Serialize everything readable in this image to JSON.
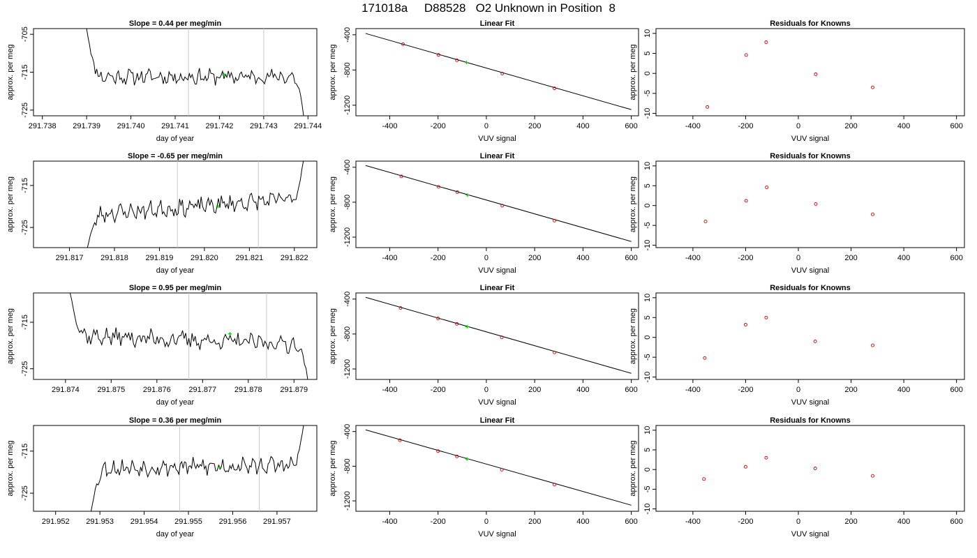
{
  "figure": {
    "title": "171018a     D88528   O2 Unknown in Position  8"
  },
  "colors": {
    "trace": "#000000",
    "guide": "#c8c8c8",
    "unknown": "#00cc00",
    "known": "#cc0000",
    "fitline": "#000000"
  },
  "chart_data": [
    {
      "type": "line",
      "panel": "timeseries",
      "row": 0,
      "title": "Slope =  0.44  per meg/min",
      "xlabel": "day of year",
      "ylabel": "approx. per meg",
      "xlim": [
        291.7378,
        291.7442
      ],
      "ylim": [
        -726.5,
        -703.5
      ],
      "y_reversed": true,
      "xticks": [
        291.738,
        291.739,
        291.74,
        291.741,
        291.742,
        291.743,
        291.744
      ],
      "xtick_labels": [
        "291.738",
        "291.739",
        "291.740",
        "291.741",
        "291.742",
        "291.743",
        "291.744"
      ],
      "yticks": [
        -705,
        -715,
        -725
      ],
      "ytick_labels": [
        "-705",
        "-715",
        "-725"
      ],
      "vlines": [
        291.7413,
        291.743
      ],
      "trace": {
        "x_start": 291.739,
        "x_end": 291.7439,
        "start_y": -703.5,
        "end_y": -726.5,
        "mean": -716.2,
        "amplitude": 1.6,
        "seed": 11
      },
      "unknown_point": {
        "x": 291.7421,
        "y": -715.6
      }
    },
    {
      "type": "scatter",
      "panel": "linear-fit",
      "row": 0,
      "title": "Linear Fit",
      "xlabel": "VUV signal",
      "ylabel": "approx. per meg",
      "xlim": [
        -540,
        630
      ],
      "ylim": [
        -1320,
        -330
      ],
      "y_reversed": true,
      "xticks": [
        -400,
        -200,
        0,
        200,
        400,
        600
      ],
      "xtick_labels": [
        "-400",
        "-200",
        "0",
        "200",
        "400",
        "600"
      ],
      "yticks": [
        -400,
        -800,
        -1200
      ],
      "ytick_labels": [
        "-400",
        "-800",
        "-1200"
      ],
      "fit_line": {
        "x": [
          -500,
          600
        ],
        "y": [
          -385,
          -1250
        ]
      },
      "knowns": [
        {
          "x": -345,
          "y": -506
        },
        {
          "x": -198,
          "y": -629
        },
        {
          "x": -122,
          "y": -690
        },
        {
          "x": 66,
          "y": -841
        },
        {
          "x": 282,
          "y": -1008
        }
      ],
      "unknown": {
        "x": -82,
        "y": -715
      }
    },
    {
      "type": "scatter",
      "panel": "residuals",
      "row": 0,
      "title": "Residuals for Knowns",
      "xlabel": "VUV signal",
      "ylabel": "approx. per meg",
      "xlim": [
        -540,
        630
      ],
      "ylim": [
        -10.6,
        11.2
      ],
      "xticks": [
        -400,
        -200,
        0,
        200,
        400,
        600
      ],
      "xtick_labels": [
        "-400",
        "-200",
        "0",
        "200",
        "400",
        "600"
      ],
      "yticks": [
        10,
        5,
        0,
        -5,
        -10
      ],
      "ytick_labels": [
        "10",
        "5",
        "0",
        "-5",
        "-10"
      ],
      "points": [
        {
          "x": -345,
          "y": -8.4
        },
        {
          "x": -198,
          "y": 4.6
        },
        {
          "x": -122,
          "y": 7.8
        },
        {
          "x": 66,
          "y": -0.2
        },
        {
          "x": 282,
          "y": -3.5
        }
      ]
    },
    {
      "type": "line",
      "panel": "timeseries",
      "row": 1,
      "title": "Slope =  -0.65  per meg/min",
      "xlabel": "day of year",
      "ylabel": "approx. per meg",
      "xlim": [
        291.8162,
        291.8225
      ],
      "ylim": [
        -729.8,
        -709.2
      ],
      "y_reversed": true,
      "xticks": [
        291.817,
        291.818,
        291.819,
        291.82,
        291.821,
        291.822
      ],
      "xtick_labels": [
        "291.817",
        "291.818",
        "291.819",
        "291.820",
        "291.821",
        "291.822"
      ],
      "yticks": [
        -715,
        -725
      ],
      "ytick_labels": [
        "-715",
        "-725"
      ],
      "vlines": [
        291.8194,
        291.8212
      ],
      "trace": {
        "x_start": 291.8174,
        "x_end": 291.8222,
        "start_y": -729.8,
        "end_y": -709.2,
        "mean": -720.0,
        "amplitude": 1.6,
        "trend": 4.0,
        "seed": 23
      },
      "unknown_point": {
        "x": 291.8203,
        "y": -720.0
      }
    },
    {
      "type": "scatter",
      "panel": "linear-fit",
      "row": 1,
      "title": "Linear Fit",
      "xlabel": "VUV signal",
      "ylabel": "approx. per meg",
      "xlim": [
        -540,
        630
      ],
      "ylim": [
        -1320,
        -330
      ],
      "y_reversed": true,
      "xticks": [
        -400,
        -200,
        0,
        200,
        400,
        600
      ],
      "xtick_labels": [
        "-400",
        "-200",
        "0",
        "200",
        "400",
        "600"
      ],
      "yticks": [
        -400,
        -800,
        -1200
      ],
      "ytick_labels": [
        "-400",
        "-800",
        "-1200"
      ],
      "fit_line": {
        "x": [
          -500,
          600
        ],
        "y": [
          -380,
          -1250
        ]
      },
      "knowns": [
        {
          "x": -352,
          "y": -505
        },
        {
          "x": -198,
          "y": -625
        },
        {
          "x": -120,
          "y": -685
        },
        {
          "x": 66,
          "y": -840
        },
        {
          "x": 282,
          "y": -1011
        }
      ],
      "unknown": {
        "x": -78,
        "y": -719
      }
    },
    {
      "type": "scatter",
      "panel": "residuals",
      "row": 1,
      "title": "Residuals for Knowns",
      "xlabel": "VUV signal",
      "ylabel": "approx. per meg",
      "xlim": [
        -540,
        630
      ],
      "ylim": [
        -10.6,
        11.2
      ],
      "xticks": [
        -400,
        -200,
        0,
        200,
        400,
        600
      ],
      "xtick_labels": [
        "-400",
        "-200",
        "0",
        "200",
        "400",
        "600"
      ],
      "yticks": [
        10,
        5,
        0,
        -5,
        -10
      ],
      "ytick_labels": [
        "10",
        "5",
        "0",
        "-5",
        "-10"
      ],
      "points": [
        {
          "x": -352,
          "y": -4.0
        },
        {
          "x": -198,
          "y": 1.2
        },
        {
          "x": -120,
          "y": 4.6
        },
        {
          "x": 66,
          "y": 0.4
        },
        {
          "x": 282,
          "y": -2.2
        }
      ]
    },
    {
      "type": "line",
      "panel": "timeseries",
      "row": 2,
      "title": "Slope =  0.95  per meg/min",
      "xlabel": "day of year",
      "ylabel": "approx. per meg",
      "xlim": [
        291.8733,
        291.8795
      ],
      "ylim": [
        -727.3,
        -708.7
      ],
      "y_reversed": true,
      "xticks": [
        291.874,
        291.875,
        291.876,
        291.877,
        291.878,
        291.879
      ],
      "xtick_labels": [
        "291.874",
        "291.875",
        "291.876",
        "291.877",
        "291.878",
        "291.879"
      ],
      "yticks": [
        -715,
        -725
      ],
      "ytick_labels": [
        "-715",
        "-725"
      ],
      "vlines": [
        291.8767,
        291.8784
      ],
      "trace": {
        "x_start": 291.8741,
        "x_end": 291.8793,
        "start_y": -708.7,
        "end_y": -727.3,
        "mean": -718.8,
        "amplitude": 1.5,
        "trend": -2.0,
        "seed": 37
      },
      "unknown_point": {
        "x": 291.8776,
        "y": -717.5
      }
    },
    {
      "type": "scatter",
      "panel": "linear-fit",
      "row": 2,
      "title": "Linear Fit",
      "xlabel": "VUV signal",
      "ylabel": "approx. per meg",
      "xlim": [
        -540,
        630
      ],
      "ylim": [
        -1320,
        -330
      ],
      "y_reversed": true,
      "xticks": [
        -400,
        -200,
        0,
        200,
        400,
        600
      ],
      "xtick_labels": [
        "-400",
        "-200",
        "0",
        "200",
        "400",
        "600"
      ],
      "yticks": [
        -400,
        -800,
        -1200
      ],
      "ytick_labels": [
        "-400",
        "-800",
        "-1200"
      ],
      "fit_line": {
        "x": [
          -500,
          600
        ],
        "y": [
          -380,
          -1250
        ]
      },
      "knowns": [
        {
          "x": -355,
          "y": -502
        },
        {
          "x": -200,
          "y": -622
        },
        {
          "x": -122,
          "y": -684
        },
        {
          "x": 64,
          "y": -838
        },
        {
          "x": 282,
          "y": -1011
        }
      ],
      "unknown": {
        "x": -80,
        "y": -716
      }
    },
    {
      "type": "scatter",
      "panel": "residuals",
      "row": 2,
      "title": "Residuals for Knowns",
      "xlabel": "VUV signal",
      "ylabel": "approx. per meg",
      "xlim": [
        -540,
        630
      ],
      "ylim": [
        -10.6,
        11.2
      ],
      "xticks": [
        -400,
        -200,
        0,
        200,
        400,
        600
      ],
      "xtick_labels": [
        "-400",
        "-200",
        "0",
        "200",
        "400",
        "600"
      ],
      "yticks": [
        10,
        5,
        0,
        -5,
        -10
      ],
      "ytick_labels": [
        "10",
        "5",
        "0",
        "-5",
        "-10"
      ],
      "points": [
        {
          "x": -355,
          "y": -5.2
        },
        {
          "x": -200,
          "y": 3.2
        },
        {
          "x": -122,
          "y": 5.0
        },
        {
          "x": 64,
          "y": -1.0
        },
        {
          "x": 282,
          "y": -2.0
        }
      ]
    },
    {
      "type": "line",
      "panel": "timeseries",
      "row": 3,
      "title": "Slope =  0.36  per meg/min",
      "xlabel": "day of year",
      "ylabel": "approx. per meg",
      "xlim": [
        291.9515,
        291.9579
      ],
      "ylim": [
        -729.3,
        -708.9
      ],
      "y_reversed": true,
      "xticks": [
        291.952,
        291.953,
        291.954,
        291.955,
        291.956,
        291.957
      ],
      "xtick_labels": [
        "291.952",
        "291.953",
        "291.954",
        "291.955",
        "291.956",
        "291.957"
      ],
      "yticks": [
        -715,
        -725
      ],
      "ytick_labels": [
        "-715",
        "-725"
      ],
      "vlines": [
        291.9548,
        291.9566
      ],
      "trace": {
        "x_start": 291.9528,
        "x_end": 291.9576,
        "start_y": -729.3,
        "end_y": -708.9,
        "mean": -718.7,
        "amplitude": 1.6,
        "trend": 0.8,
        "seed": 53
      },
      "unknown_point": {
        "x": 291.9557,
        "y": -718.8
      }
    },
    {
      "type": "scatter",
      "panel": "linear-fit",
      "row": 3,
      "title": "Linear Fit",
      "xlabel": "VUV signal",
      "ylabel": "approx. per meg",
      "xlim": [
        -540,
        630
      ],
      "ylim": [
        -1320,
        -330
      ],
      "y_reversed": true,
      "xticks": [
        -400,
        -200,
        0,
        200,
        400,
        600
      ],
      "xtick_labels": [
        "-400",
        "-200",
        "0",
        "200",
        "400",
        "600"
      ],
      "yticks": [
        -400,
        -800,
        -1200
      ],
      "ytick_labels": [
        "-400",
        "-800",
        "-1200"
      ],
      "fit_line": {
        "x": [
          -500,
          600
        ],
        "y": [
          -380,
          -1250
        ]
      },
      "knowns": [
        {
          "x": -358,
          "y": -500
        },
        {
          "x": -200,
          "y": -626
        },
        {
          "x": -122,
          "y": -687
        },
        {
          "x": 64,
          "y": -840
        },
        {
          "x": 282,
          "y": -1012
        }
      ],
      "unknown": {
        "x": -80,
        "y": -717
      }
    },
    {
      "type": "scatter",
      "panel": "residuals",
      "row": 3,
      "title": "Residuals for Knowns",
      "xlabel": "VUV signal",
      "ylabel": "approx. per meg",
      "xlim": [
        -540,
        630
      ],
      "ylim": [
        -10.6,
        11.2
      ],
      "xticks": [
        -400,
        -200,
        0,
        200,
        400,
        600
      ],
      "xtick_labels": [
        "-400",
        "-200",
        "0",
        "200",
        "400",
        "600"
      ],
      "yticks": [
        10,
        5,
        0,
        -5,
        -10
      ],
      "ytick_labels": [
        "10",
        "5",
        "0",
        "-5",
        "-10"
      ],
      "points": [
        {
          "x": -358,
          "y": -2.4
        },
        {
          "x": -200,
          "y": 0.7
        },
        {
          "x": -122,
          "y": 3.0
        },
        {
          "x": 64,
          "y": 0.3
        },
        {
          "x": 282,
          "y": -1.6
        }
      ]
    }
  ]
}
